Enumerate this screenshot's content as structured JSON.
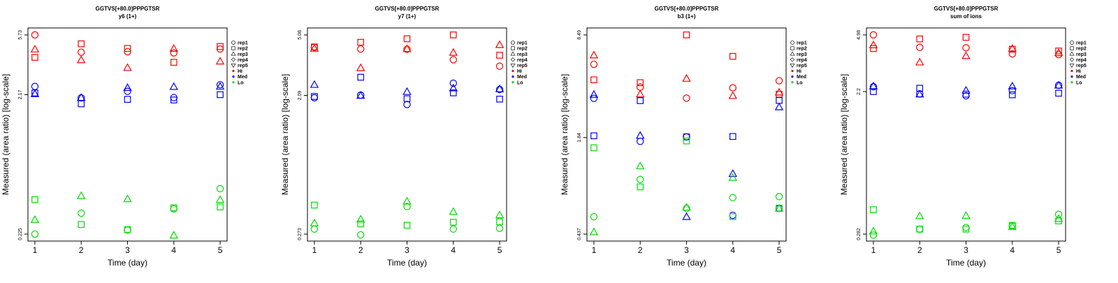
{
  "chart_data": [
    {
      "type": "scatter",
      "title": "GGTVS[+80.0]PPPGTSR",
      "subtitle": "y6 (1+)",
      "xlabel": "Time (day)",
      "ylabel": "Measured (area ratio) [log-scale]",
      "y_scale": "log",
      "ylim": [
        0.225,
        5.73
      ],
      "y_ticks": [
        "0.225",
        "2.17",
        "5.73"
      ],
      "x_ticks": [
        "1",
        "2",
        "3",
        "4",
        "5"
      ],
      "x": [
        1,
        2,
        3,
        4,
        5
      ],
      "legend_position": "right",
      "grid": false,
      "series": [
        {
          "name": "rep1",
          "group": "Hi",
          "values": [
            5.73,
            4.33,
            4.36,
            4.28,
            4.56
          ]
        },
        {
          "name": "rep2",
          "group": "Hi",
          "values": [
            3.98,
            4.96,
            4.6,
            3.67,
            4.75
          ]
        },
        {
          "name": "rep3",
          "group": "Hi",
          "values": [
            4.52,
            3.8,
            3.35,
            4.57,
            3.72
          ]
        },
        {
          "name": "rep1",
          "group": "Med",
          "values": [
            2.48,
            2.06,
            2.29,
            2.07,
            2.55
          ]
        },
        {
          "name": "rep2",
          "group": "Med",
          "values": [
            2.23,
            1.87,
            2.01,
            1.99,
            2.17
          ]
        },
        {
          "name": "rep3",
          "group": "Med",
          "values": [
            2.19,
            2.06,
            2.42,
            2.46,
            2.47
          ]
        },
        {
          "name": "rep1",
          "group": "Lo",
          "values": [
            0.225,
            0.316,
            0.24,
            0.339,
            0.471
          ]
        },
        {
          "name": "rep2",
          "group": "Lo",
          "values": [
            0.394,
            0.263,
            0.242,
            0.345,
            0.35
          ]
        },
        {
          "name": "rep3",
          "group": "Lo",
          "values": [
            0.283,
            0.418,
            0.397,
            0.22,
            0.392
          ]
        }
      ]
    },
    {
      "type": "scatter",
      "title": "GGTVS[+80.0]PPPGTSR",
      "subtitle": "y7 (1+)",
      "xlabel": "Time (day)",
      "ylabel": "Measured (area ratio) [log-scale]",
      "y_scale": "log",
      "ylim": [
        0.273,
        5.08
      ],
      "y_ticks": [
        "0.273",
        "2.09",
        "5.08"
      ],
      "x_ticks": [
        "1",
        "2",
        "3",
        "4",
        "5"
      ],
      "x": [
        1,
        2,
        3,
        4,
        5
      ],
      "legend_position": "right",
      "grid": false,
      "series": [
        {
          "name": "rep1",
          "group": "Hi",
          "values": [
            4.24,
            4.13,
            4.12,
            3.53,
            3.21
          ]
        },
        {
          "name": "rep2",
          "group": "Hi",
          "values": [
            4.26,
            4.56,
            4.8,
            5.08,
            3.77
          ]
        },
        {
          "name": "rep3",
          "group": "Hi",
          "values": [
            4.15,
            3.12,
            4.13,
            3.91,
            4.38
          ]
        },
        {
          "name": "rep1",
          "group": "Med",
          "values": [
            2.02,
            2.1,
            1.83,
            2.5,
            2.28
          ]
        },
        {
          "name": "rep2",
          "group": "Med",
          "values": [
            2.06,
            2.73,
            1.99,
            2.17,
            1.98
          ]
        },
        {
          "name": "rep3",
          "group": "Med",
          "values": [
            2.44,
            2.08,
            2.2,
            2.32,
            2.29
          ]
        },
        {
          "name": "rep1",
          "group": "Lo",
          "values": [
            0.294,
            0.27,
            0.409,
            0.294,
            0.297
          ]
        },
        {
          "name": "rep2",
          "group": "Lo",
          "values": [
            0.418,
            0.317,
            0.311,
            0.325,
            0.327
          ]
        },
        {
          "name": "rep3",
          "group": "Lo",
          "values": [
            0.32,
            0.338,
            0.44,
            0.378,
            0.36
          ]
        }
      ]
    },
    {
      "type": "scatter",
      "title": "GGTVS[+80.0]PPPGTSR",
      "subtitle": "b3 (1+)",
      "xlabel": "Time (day)",
      "ylabel": "Measured (area ratio) [log-scale]",
      "y_scale": "log",
      "ylim": [
        0.437,
        8.49
      ],
      "y_ticks": [
        "0.437",
        "1.84",
        "8.49"
      ],
      "x_ticks": [
        "1",
        "2",
        "3",
        "4",
        "5"
      ],
      "x": [
        1,
        2,
        3,
        4,
        5
      ],
      "legend_position": "right",
      "grid": false,
      "series": [
        {
          "name": "rep1",
          "group": "Hi",
          "values": [
            5.48,
            3.9,
            3.31,
            3.86,
            4.29
          ]
        },
        {
          "name": "rep2",
          "group": "Hi",
          "values": [
            4.35,
            4.17,
            8.49,
            6.17,
            3.51
          ]
        },
        {
          "name": "rep3",
          "group": "Hi",
          "values": [
            6.26,
            3.5,
            4.42,
            3.42,
            3.6
          ]
        },
        {
          "name": "rep1",
          "group": "Med",
          "values": [
            3.3,
            1.74,
            1.86,
            0.578,
            0.641
          ]
        },
        {
          "name": "rep2",
          "group": "Med",
          "values": [
            1.89,
            3.19,
            1.86,
            1.87,
            3.2
          ]
        },
        {
          "name": "rep3",
          "group": "Med",
          "values": [
            3.48,
            1.89,
            0.564,
            1.07,
            2.89
          ]
        },
        {
          "name": "rep1",
          "group": "Lo",
          "values": [
            0.566,
            0.987,
            0.64,
            0.752,
            0.764
          ]
        },
        {
          "name": "rep2",
          "group": "Lo",
          "values": [
            1.58,
            0.883,
            1.75,
            0.567,
            0.644
          ]
        },
        {
          "name": "rep3",
          "group": "Lo",
          "values": [
            0.449,
            1.2,
            0.649,
            1.01,
            0.637
          ]
        }
      ]
    },
    {
      "type": "scatter",
      "title": "GGTVS[+80.0]PPPGTSR",
      "subtitle": "sum of ions",
      "xlabel": "Time (day)",
      "ylabel": "Measured (area ratio) [log-scale]",
      "y_scale": "log",
      "ylim": [
        0.282,
        4.98
      ],
      "y_ticks": [
        "0.282",
        "2.2",
        "4.98"
      ],
      "x_ticks": [
        "1",
        "2",
        "3",
        "4",
        "5"
      ],
      "x": [
        1,
        2,
        3,
        4,
        5
      ],
      "legend_position": "right",
      "grid": false,
      "series": [
        {
          "name": "rep1",
          "group": "Hi",
          "values": [
            4.98,
            4.16,
            4.14,
            3.79,
            3.75
          ]
        },
        {
          "name": "rep2",
          "group": "Hi",
          "values": [
            4.09,
            4.7,
            4.81,
            4.05,
            3.95
          ]
        },
        {
          "name": "rep3",
          "group": "Hi",
          "values": [
            4.29,
            3.35,
            3.67,
            4.08,
            3.83
          ]
        },
        {
          "name": "rep1",
          "group": "Med",
          "values": [
            2.36,
            2.13,
            2.07,
            2.23,
            2.41
          ]
        },
        {
          "name": "rep2",
          "group": "Med",
          "values": [
            2.2,
            2.31,
            2.12,
            2.1,
            2.15
          ]
        },
        {
          "name": "rep3",
          "group": "Med",
          "values": [
            2.37,
            2.11,
            2.23,
            2.37,
            2.4
          ]
        },
        {
          "name": "rep1",
          "group": "Lo",
          "values": [
            0.278,
            0.303,
            0.31,
            0.317,
            0.375
          ]
        },
        {
          "name": "rep2",
          "group": "Lo",
          "values": [
            0.401,
            0.303,
            0.303,
            0.32,
            0.341
          ]
        },
        {
          "name": "rep3",
          "group": "Lo",
          "values": [
            0.293,
            0.365,
            0.367,
            0.313,
            0.351
          ]
        }
      ]
    }
  ],
  "legend": {
    "items": [
      {
        "label": "rep1",
        "marker": "circle-open",
        "color": "#000000"
      },
      {
        "label": "rep2",
        "marker": "square-open",
        "color": "#000000"
      },
      {
        "label": "rep3",
        "marker": "triangle-up-open",
        "color": "#000000"
      },
      {
        "label": "rep4",
        "marker": "diamond-open",
        "color": "#000000"
      },
      {
        "label": "rep5",
        "marker": "triangle-down-open",
        "color": "#000000"
      },
      {
        "label": "Hi",
        "marker": "dot",
        "color": "#ff0000"
      },
      {
        "label": "Med",
        "marker": "dot",
        "color": "#0000ff"
      },
      {
        "label": "Lo",
        "marker": "dot",
        "color": "#00dd00"
      }
    ]
  },
  "colors": {
    "Hi": "#ff0000",
    "Med": "#0000ff",
    "Lo": "#00dd00"
  },
  "rep_markers": {
    "rep1": "circle",
    "rep2": "square",
    "rep3": "triangle-up",
    "rep4": "diamond",
    "rep5": "triangle-down"
  }
}
